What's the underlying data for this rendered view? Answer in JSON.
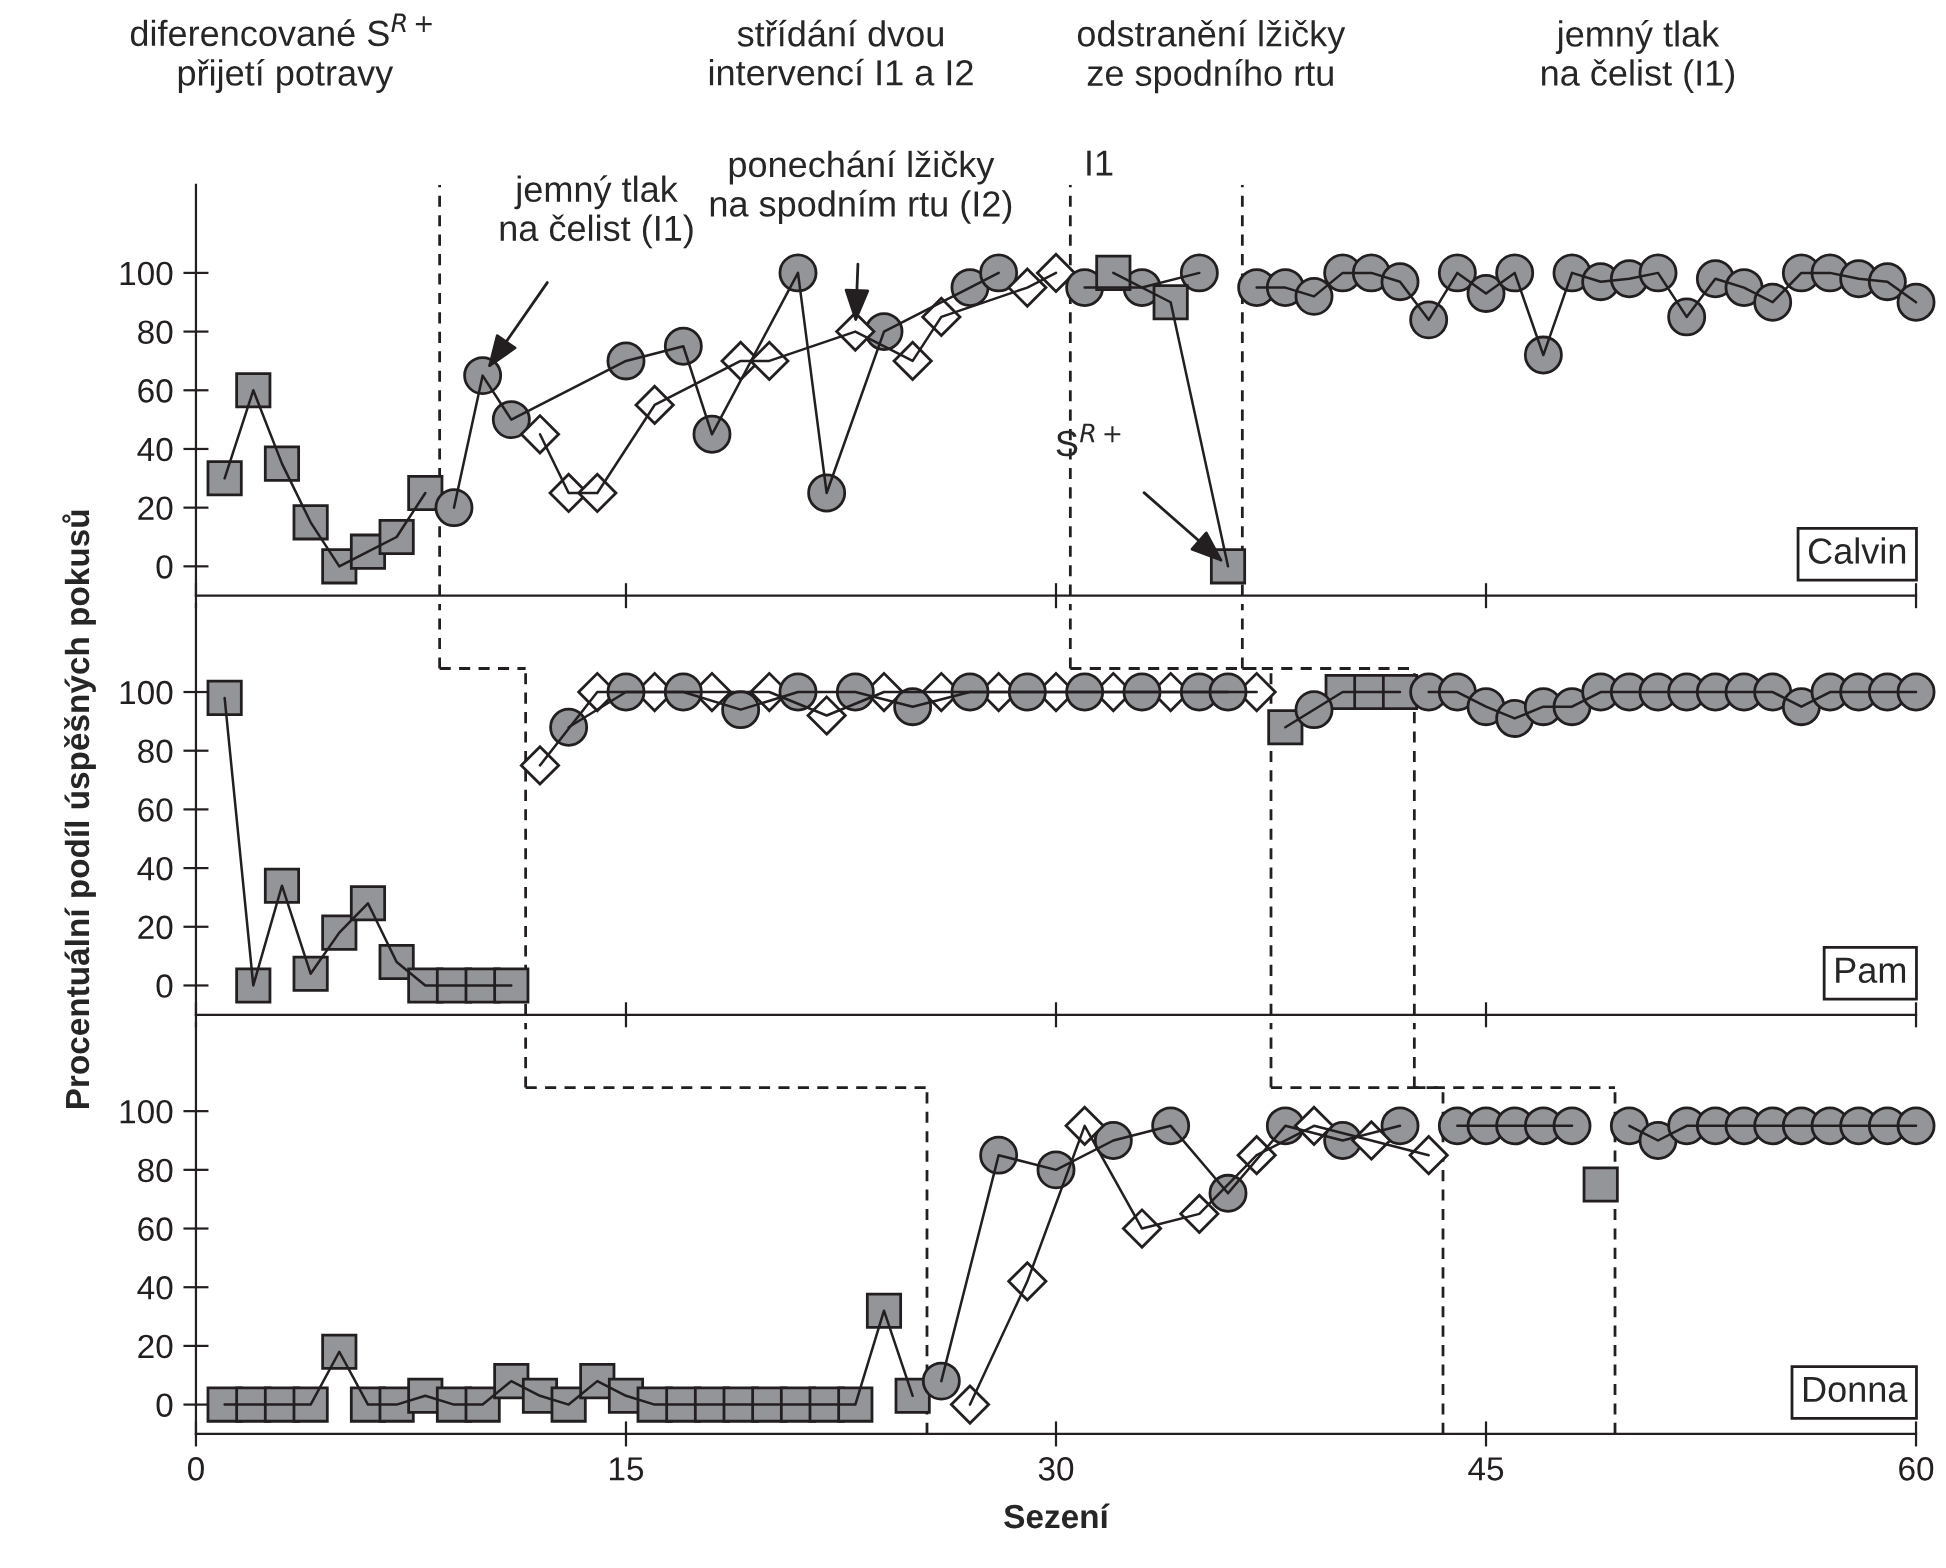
{
  "chart_data": [
    {
      "type": "line",
      "title": "Calvin",
      "xlim": [
        0,
        60
      ],
      "xticks": [
        0,
        15,
        30,
        45,
        60
      ],
      "ylim": [
        -10,
        130
      ],
      "yticks": [
        0,
        20,
        40,
        60,
        80,
        100
      ],
      "tick_labels": "y",
      "annotations": [
        "diferencované S$^{R+}$\npřijetí potravy",
        "střídání dvou\nintervencí I1 a I2",
        "odstranění lžičky\nze spodního rtu",
        "jemný tlak\nna čelist (I1)",
        {
          "text": "jemný tlak\nna čelist (I1)",
          "x": 10,
          "y": 65
        },
        {
          "text": "ponechání lžičky\nna spodním rtu (I2)",
          "x": 23,
          "y": 80
        },
        "I1",
        {
          "text": "S$^{R+}$",
          "x": 36,
          "y": 0
        }
      ],
      "ref_lines": [
        {
          "axis": "x",
          "value": 8.5,
          "line_style": "dashed"
        },
        {
          "axis": "x",
          "value": 30.5,
          "line_style": "dashed"
        },
        {
          "axis": "x",
          "value": 36.5,
          "line_style": "dashed"
        }
      ],
      "series": [
        {
          "color": "#939598",
          "marker": "square",
          "x": [
            1,
            2,
            3,
            4,
            5,
            6,
            7,
            8
          ],
          "values": [
            30,
            60,
            35,
            15,
            0,
            5,
            10,
            25
          ]
        },
        {
          "color": "#939598",
          "marker": "circle",
          "x": [
            9,
            10,
            11,
            15,
            17,
            18,
            21,
            22,
            24,
            27,
            28
          ],
          "values": [
            20,
            65,
            50,
            70,
            75,
            45,
            100,
            25,
            80,
            95,
            100
          ]
        },
        {
          "color": "#ffffff",
          "marker": "diamond",
          "x": [
            12,
            13,
            14,
            16,
            19,
            20,
            23,
            25,
            26,
            29,
            30
          ],
          "values": [
            45,
            25,
            25,
            55,
            70,
            70,
            80,
            70,
            85,
            95,
            100
          ]
        },
        {
          "color": "#939598",
          "marker": "circle",
          "x": [
            31,
            33,
            35
          ],
          "values": [
            95,
            95,
            100
          ]
        },
        {
          "color": "#939598",
          "marker": "square",
          "x": [
            32,
            34,
            36
          ],
          "values": [
            100,
            90,
            0
          ]
        },
        {
          "color": "#939598",
          "marker": "circle",
          "x": [
            37,
            38,
            39,
            40,
            41,
            42,
            43,
            44,
            45,
            46,
            47,
            48,
            49,
            50,
            51,
            52,
            53,
            54,
            55,
            56,
            57,
            58,
            59,
            60
          ],
          "values": [
            95,
            95,
            92,
            100,
            100,
            97,
            84,
            100,
            93,
            100,
            72,
            100,
            97,
            98,
            100,
            85,
            98,
            95,
            90,
            100,
            100,
            98,
            97,
            90
          ]
        }
      ]
    },
    {
      "type": "line",
      "title": "Pam",
      "ylabel": "Procentuální podíl úspěšných pokusů",
      "xlim": [
        0,
        60
      ],
      "xticks": [
        0,
        15,
        30,
        45,
        60
      ],
      "ylim": [
        -10,
        130
      ],
      "yticks": [
        0,
        20,
        40,
        60,
        80,
        100
      ],
      "tick_labels": "y",
      "ref_lines": [
        {
          "axis": "x",
          "value": 11.5,
          "line_style": "dashed"
        },
        {
          "axis": "x",
          "value": 37.5,
          "line_style": "dashed"
        },
        {
          "axis": "x",
          "value": 42.5,
          "line_style": "dashed"
        }
      ],
      "series": [
        {
          "color": "#939598",
          "marker": "square",
          "x": [
            1,
            2,
            3,
            4,
            5,
            6,
            7,
            8,
            9,
            10,
            11
          ],
          "values": [
            98,
            0,
            34,
            4,
            18,
            28,
            8,
            0,
            0,
            0,
            0
          ]
        },
        {
          "color": "#ffffff",
          "marker": "diamond",
          "x": [
            12,
            14,
            16,
            18,
            20,
            22,
            24,
            26,
            28,
            30,
            32,
            34,
            37
          ],
          "values": [
            75,
            100,
            100,
            100,
            100,
            92,
            100,
            100,
            100,
            100,
            100,
            100,
            100
          ]
        },
        {
          "color": "#939598",
          "marker": "circle",
          "x": [
            13,
            15,
            17,
            19,
            21,
            23,
            25,
            27,
            29,
            31,
            33,
            35,
            36
          ],
          "values": [
            88,
            100,
            100,
            94,
            100,
            100,
            95,
            100,
            100,
            100,
            100,
            100,
            100
          ]
        },
        {
          "color": "#939598",
          "marker": "square",
          "x": [
            38,
            40,
            41,
            42
          ],
          "values": [
            88,
            100,
            100,
            100
          ]
        },
        {
          "color": "#939598",
          "marker": "circle",
          "x": [
            39
          ],
          "values": [
            94
          ]
        },
        {
          "color": "#939598",
          "marker": "circle",
          "x": [
            43,
            44,
            45,
            46,
            47,
            48,
            49,
            50,
            51,
            52,
            53,
            54,
            55,
            56,
            57,
            58,
            59,
            60
          ],
          "values": [
            100,
            100,
            95,
            91,
            95,
            95,
            100,
            100,
            100,
            100,
            100,
            100,
            100,
            95,
            100,
            100,
            100,
            100
          ]
        }
      ]
    },
    {
      "type": "line",
      "title": "Donna",
      "xlabel": "Sezení",
      "xlim": [
        0,
        60
      ],
      "xticks": [
        0,
        15,
        30,
        45,
        60
      ],
      "ylim": [
        -10,
        130
      ],
      "yticks": [
        0,
        20,
        40,
        60,
        80,
        100
      ],
      "ref_lines": [
        {
          "axis": "x",
          "value": 25.5,
          "line_style": "dashed"
        },
        {
          "axis": "x",
          "value": 43.5,
          "line_style": "dashed"
        },
        {
          "axis": "x",
          "value": 49.5,
          "line_style": "dashed"
        }
      ],
      "series": [
        {
          "color": "#939598",
          "marker": "square",
          "x": [
            1,
            2,
            3,
            4,
            5,
            6,
            7,
            8,
            9,
            10,
            11,
            12,
            13,
            14,
            15,
            16,
            17,
            18,
            19,
            20,
            21,
            22,
            23,
            24,
            25
          ],
          "values": [
            0,
            0,
            0,
            0,
            18,
            0,
            0,
            3,
            0,
            0,
            8,
            3,
            0,
            8,
            3,
            0,
            0,
            0,
            0,
            0,
            0,
            0,
            0,
            32,
            3
          ]
        },
        {
          "color": "#939598",
          "marker": "circle",
          "x": [
            26,
            28,
            30,
            32,
            34,
            36,
            38,
            40,
            42
          ],
          "values": [
            8,
            85,
            80,
            90,
            95,
            72,
            95,
            90,
            95
          ]
        },
        {
          "color": "#ffffff",
          "marker": "diamond",
          "x": [
            27,
            29,
            31,
            33,
            35,
            37,
            39,
            41,
            43
          ],
          "values": [
            0,
            42,
            95,
            60,
            65,
            85,
            95,
            90,
            85
          ]
        },
        {
          "color": "#939598",
          "marker": "circle",
          "x": [
            44,
            45,
            46,
            47,
            48
          ],
          "values": [
            95,
            95,
            95,
            95,
            95
          ]
        },
        {
          "color": "#939598",
          "marker": "square",
          "x": [
            49
          ],
          "values": [
            75
          ]
        },
        {
          "color": "#939598",
          "marker": "circle",
          "x": [
            50,
            51,
            52,
            53,
            54,
            55,
            56,
            57,
            58,
            59,
            60
          ],
          "values": [
            95,
            90,
            95,
            95,
            95,
            95,
            95,
            95,
            95,
            95,
            95
          ]
        }
      ]
    }
  ]
}
